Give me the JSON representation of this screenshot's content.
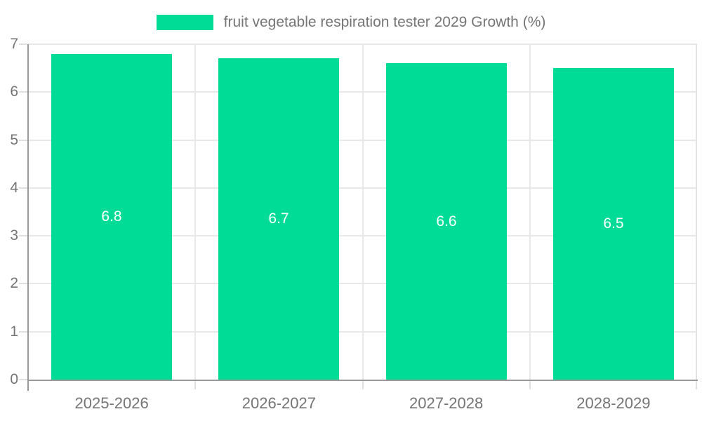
{
  "chart_data": {
    "type": "bar",
    "title": "fruit vegetable respiration tester 2029 Growth (%)",
    "categories": [
      "2025-2026",
      "2026-2027",
      "2027-2028",
      "2028-2029"
    ],
    "values": [
      6.8,
      6.7,
      6.6,
      6.5
    ],
    "value_labels": [
      "6.8",
      "6.7",
      "6.6",
      "6.5"
    ],
    "xlabel": "",
    "ylabel": "",
    "ylim": [
      0,
      7
    ],
    "y_ticks": [
      0,
      1,
      2,
      3,
      4,
      5,
      6,
      7
    ],
    "grid": true,
    "legend_position": "top",
    "colors": {
      "bar": "#00DC96",
      "value_label": "#ffffff",
      "axis_line": "#999999",
      "grid_line": "#e8e8e8",
      "tick_line": "#e0e0e0",
      "text": "#757575",
      "plot_border_right": "#e3e3e3",
      "background": "#ffffff"
    }
  }
}
